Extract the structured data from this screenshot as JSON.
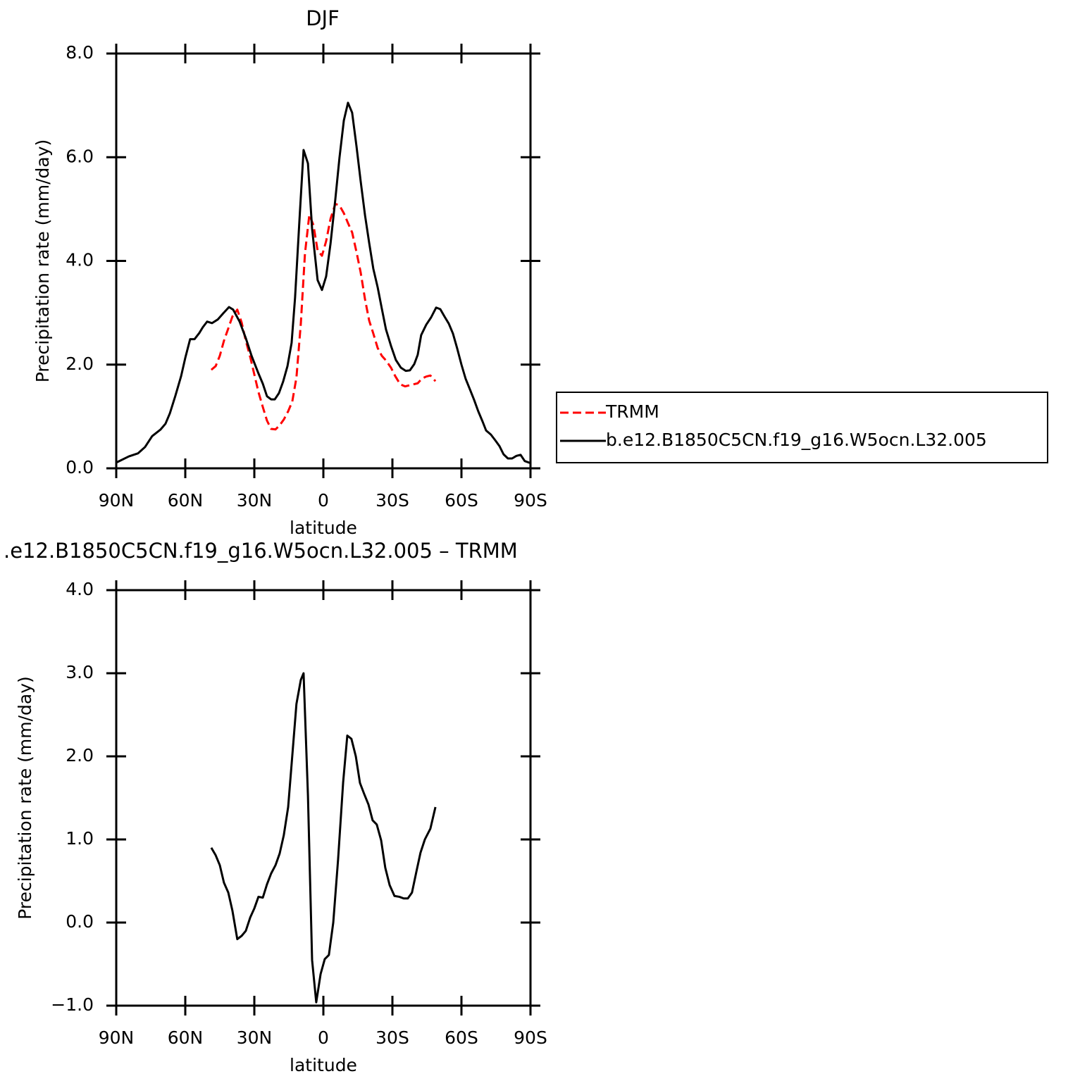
{
  "chart_data": [
    {
      "type": "line",
      "title": "DJF",
      "xlabel": "latitude",
      "ylabel": "Precipitation rate (mm/day)",
      "xlim": [
        90,
        -90
      ],
      "xticks": [
        {
          "value": 90,
          "label": "90N"
        },
        {
          "value": 60,
          "label": "60N"
        },
        {
          "value": 30,
          "label": "30N"
        },
        0,
        {
          "value": -30,
          "label": "30S"
        },
        {
          "value": -60,
          "label": "60S"
        },
        {
          "value": -90,
          "label": "90S"
        }
      ],
      "ylim": [
        0,
        8
      ],
      "yticks": [
        {
          "value": 0,
          "label": "0.0"
        },
        {
          "value": 2,
          "label": "2.0"
        },
        {
          "value": 4,
          "label": "4.0"
        },
        {
          "value": 6,
          "label": "6.0"
        },
        {
          "value": 8,
          "label": "8.0"
        }
      ],
      "legend": "outside-right",
      "series": [
        {
          "name": "TRMM",
          "color": "#ff0000",
          "dashed": true,
          "x": [
            48.7,
            46.8,
            45,
            43.2,
            41.3,
            39.5,
            37.4,
            35.5,
            33.7,
            31.8,
            30,
            28.2,
            26.3,
            24.5,
            22.7,
            20.8,
            19,
            17.2,
            15.3,
            13.5,
            11.7,
            9.8,
            8,
            6.1,
            4.3,
            2.5,
            0.6,
            -1.2,
            -3.1,
            -5.2,
            -7,
            -8.9,
            -10.7,
            -12.5,
            -14.4,
            -16.2,
            -18.1,
            -19.9,
            -21.7,
            -23.6,
            -25.4,
            -27.2,
            -29.4,
            -31.2,
            -33.4,
            -35.5,
            -37.3,
            -39.2,
            -41,
            -42.8,
            -44.7,
            -46.5,
            -48.7
          ],
          "values": [
            1.9,
            1.97,
            2.17,
            2.46,
            2.7,
            2.93,
            3.06,
            2.81,
            2.46,
            2.15,
            1.81,
            1.47,
            1.18,
            0.92,
            0.76,
            0.75,
            0.83,
            0.94,
            1.1,
            1.29,
            1.75,
            2.79,
            4.14,
            4.89,
            4.69,
            4.2,
            4.1,
            4.38,
            4.81,
            5.1,
            5.07,
            4.92,
            4.73,
            4.55,
            4.17,
            3.78,
            3.26,
            2.85,
            2.6,
            2.32,
            2.17,
            2.08,
            1.94,
            1.78,
            1.62,
            1.58,
            1.6,
            1.62,
            1.64,
            1.73,
            1.77,
            1.79,
            1.68
          ]
        },
        {
          "name": "b.e12.B1850C5CN.f19_g16.W5ocn.L32.005",
          "color": "#000000",
          "dashed": false,
          "x": [
            90,
            84.5,
            80.5,
            77.5,
            74.4,
            70.7,
            68.6,
            66.7,
            64.3,
            61.8,
            60,
            57.9,
            56,
            53.9,
            52.4,
            50.5,
            48.4,
            45.9,
            43.5,
            41,
            39.2,
            36.4,
            33.7,
            31.2,
            28.2,
            26.3,
            24.5,
            22.7,
            21.1,
            19.3,
            17.5,
            15.6,
            13.8,
            12.3,
            10.4,
            8.6,
            6.7,
            4.9,
            2.5,
            0.6,
            -1.2,
            -3.1,
            -5.2,
            -7,
            -8.9,
            -10.7,
            -12.5,
            -14.4,
            -16.2,
            -18.1,
            -19.9,
            -21.7,
            -23.6,
            -25.4,
            -27.2,
            -29.4,
            -31.5,
            -33.7,
            -35.8,
            -37.6,
            -39.5,
            -41,
            -42.5,
            -44.7,
            -46.8,
            -49,
            -50.8,
            -52.6,
            -54.5,
            -56.3,
            -58.1,
            -60,
            -61.8,
            -63.7,
            -65.5,
            -67.3,
            -69.2,
            -70.7,
            -72.8,
            -74.7,
            -76.5,
            -78.3,
            -80.2,
            -82,
            -83.9,
            -85.7,
            -87.5,
            -90
          ],
          "values": [
            0.11,
            0.23,
            0.29,
            0.41,
            0.62,
            0.75,
            0.86,
            1.06,
            1.4,
            1.78,
            2.13,
            2.49,
            2.49,
            2.61,
            2.72,
            2.83,
            2.8,
            2.87,
            2.99,
            3.11,
            3.06,
            2.83,
            2.51,
            2.17,
            1.83,
            1.63,
            1.39,
            1.33,
            1.33,
            1.45,
            1.67,
            1.97,
            2.42,
            3.29,
            4.78,
            6.14,
            5.88,
            4.62,
            3.63,
            3.44,
            3.7,
            4.33,
            5.19,
            5.99,
            6.71,
            7.05,
            6.86,
            6.21,
            5.54,
            4.88,
            4.35,
            3.85,
            3.49,
            3.08,
            2.68,
            2.36,
            2.09,
            1.94,
            1.88,
            1.89,
            2.01,
            2.19,
            2.57,
            2.77,
            2.91,
            3.1,
            3.07,
            2.93,
            2.79,
            2.6,
            2.32,
            2,
            1.73,
            1.52,
            1.32,
            1.1,
            0.9,
            0.73,
            0.65,
            0.54,
            0.43,
            0.27,
            0.19,
            0.19,
            0.24,
            0.26,
            0.14,
            0.1
          ]
        }
      ]
    },
    {
      "type": "line",
      "title": ".e12.B1850C5CN.f19_g16.W5ocn.L32.005 – TRMM",
      "xlabel": "latitude",
      "ylabel": "Precipitation rate (mm/day)",
      "xlim": [
        90,
        -90
      ],
      "xticks": [
        {
          "value": 90,
          "label": "90N"
        },
        {
          "value": 60,
          "label": "60N"
        },
        {
          "value": 30,
          "label": "30N"
        },
        0,
        {
          "value": -30,
          "label": "30S"
        },
        {
          "value": -60,
          "label": "60S"
        },
        {
          "value": -90,
          "label": "90S"
        }
      ],
      "ylim": [
        -1,
        4
      ],
      "yticks": [
        {
          "value": -1,
          "label": "−1.0"
        },
        {
          "value": 0,
          "label": "0.0"
        },
        {
          "value": 1,
          "label": "1.0"
        },
        {
          "value": 2,
          "label": "2.0"
        },
        {
          "value": 3,
          "label": "3.0"
        },
        {
          "value": 4,
          "label": "4.0"
        }
      ],
      "series": [
        {
          "color": "#000000",
          "dashed": false,
          "x": [
            48.7,
            46.8,
            45,
            43.2,
            41.3,
            39.5,
            37.4,
            35.5,
            33.7,
            31.8,
            30,
            28.2,
            26.3,
            24.5,
            22.7,
            20.8,
            19,
            17.2,
            15.3,
            13.5,
            11.7,
            9.8,
            8.6,
            6.7,
            4.9,
            3.1,
            1.2,
            -0.6,
            -2.4,
            -4.3,
            -6.4,
            -8.6,
            -10.4,
            -12.2,
            -14.1,
            -15.9,
            -17.7,
            -19.6,
            -21.4,
            -23.2,
            -25.1,
            -26.9,
            -28.8,
            -30.9,
            -33,
            -34.9,
            -36.7,
            -38.5,
            -40.4,
            -42.2,
            -44.1,
            -46.5,
            -48.7
          ],
          "values": [
            0.9,
            0.81,
            0.69,
            0.48,
            0.36,
            0.14,
            -0.2,
            -0.16,
            -0.1,
            0.06,
            0.17,
            0.31,
            0.3,
            0.46,
            0.59,
            0.69,
            0.83,
            1.05,
            1.39,
            2.01,
            2.63,
            2.92,
            3,
            1.53,
            -0.45,
            -0.96,
            -0.62,
            -0.44,
            -0.39,
            0,
            0.76,
            1.69,
            2.25,
            2.21,
            2,
            1.68,
            1.55,
            1.42,
            1.23,
            1.18,
            0.99,
            0.66,
            0.45,
            0.32,
            0.31,
            0.29,
            0.29,
            0.36,
            0.61,
            0.84,
            1,
            1.13,
            1.39
          ]
        }
      ]
    }
  ]
}
